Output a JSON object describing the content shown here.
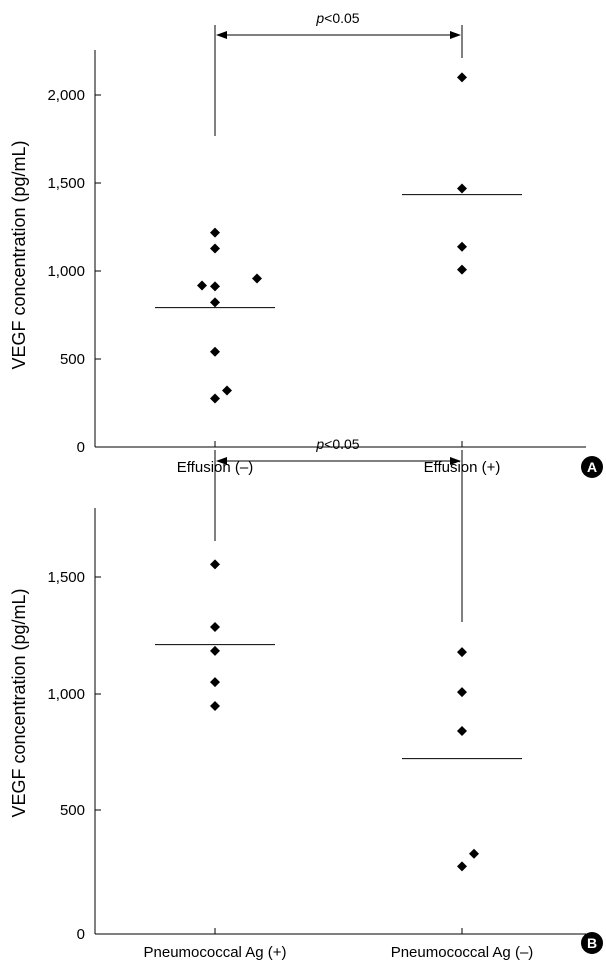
{
  "chart_data": [
    {
      "panel": "A",
      "type": "scatter",
      "ylabel": "VEGF concentration (pg/mL)",
      "xlabel": "",
      "ylim": [
        0,
        2250
      ],
      "yticks": [
        0,
        500,
        1000,
        1500,
        2000
      ],
      "ytick_labels": [
        "0",
        "500",
        "1,000",
        "1,500",
        "2,000"
      ],
      "categories": [
        "Effusion (–)",
        "Effusion (+)"
      ],
      "series": [
        {
          "category": "Effusion (–)",
          "values": [
            1215,
            1125,
            955,
            915,
            910,
            820,
            540,
            320,
            275
          ],
          "mean": 790
        },
        {
          "category": "Effusion (+)",
          "values": [
            2095,
            1465,
            1135,
            1005
          ],
          "mean": 1430
        }
      ],
      "comparison": {
        "text_italic": "p",
        "text_rest": "<0.05"
      },
      "grid": false
    },
    {
      "panel": "B",
      "type": "scatter",
      "ylabel": "VEGF concentration (pg/mL)",
      "xlabel": "",
      "ylim": [
        0,
        1700
      ],
      "yticks": [
        0,
        500,
        1000,
        1500
      ],
      "ytick_labels": [
        "0",
        "500",
        "1,000",
        "1,500"
      ],
      "categories": [
        "Pneumococcal Ag (+)",
        "Pneumococcal Ag (–)"
      ],
      "series": [
        {
          "category": "Pneumococcal Ag (+)",
          "values": [
            1475,
            1225,
            1130,
            1005,
            910
          ],
          "mean": 1155
        },
        {
          "category": "Pneumococcal Ag (–)",
          "values": [
            1125,
            965,
            810,
            320,
            270
          ],
          "mean": 700
        }
      ],
      "comparison": {
        "text_italic": "p",
        "text_rest": "<0.05"
      },
      "grid": false
    }
  ]
}
